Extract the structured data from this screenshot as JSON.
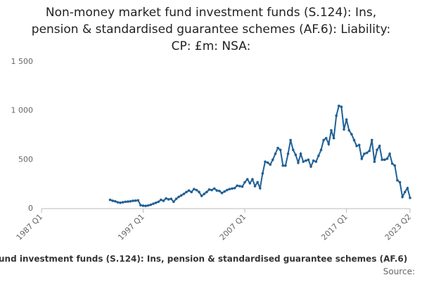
{
  "chart_data": {
    "type": "line",
    "title": [
      "Non-money market fund investment funds (S.124): Ins,",
      "pension & standardised guarantee schemes (AF.6): Liability:",
      "CP: £m: NSA:"
    ],
    "x_label": "und investment funds (S.124): Ins, pension & standardised guarantee schemes (AF.6)",
    "source": "Source:",
    "start": "1993 Q4",
    "xlim": [
      "1987 Q1",
      "2023 Q2"
    ],
    "xticks": [
      "1987 Q1",
      "1997 Q1",
      "2007 Q1",
      "2017 Q1",
      "2023 Q2"
    ],
    "ylim": [
      0,
      1500
    ],
    "yticks": [
      0,
      500,
      {
        "value": 1000,
        "label": "1 000"
      },
      {
        "value": 1500,
        "label": "1 500"
      }
    ],
    "grid": false,
    "series": [
      {
        "name": "Liability",
        "color": "#206095",
        "values": [
          90,
          80,
          75,
          65,
          60,
          65,
          70,
          72,
          75,
          80,
          82,
          85,
          35,
          30,
          28,
          32,
          40,
          50,
          60,
          70,
          90,
          80,
          105,
          95,
          100,
          70,
          100,
          120,
          135,
          150,
          170,
          185,
          170,
          200,
          190,
          170,
          130,
          150,
          170,
          195,
          190,
          205,
          185,
          180,
          160,
          175,
          190,
          200,
          205,
          210,
          235,
          230,
          225,
          270,
          300,
          260,
          300,
          230,
          270,
          210,
          360,
          480,
          470,
          450,
          500,
          560,
          620,
          600,
          440,
          440,
          560,
          700,
          600,
          550,
          470,
          560,
          480,
          490,
          500,
          430,
          490,
          480,
          540,
          600,
          700,
          720,
          660,
          800,
          720,
          950,
          1050,
          1040,
          810,
          910,
          800,
          760,
          700,
          640,
          650,
          510,
          560,
          570,
          590,
          700,
          480,
          600,
          640,
          500,
          500,
          510,
          560,
          460,
          440,
          290,
          270,
          120,
          170,
          210,
          110
        ]
      }
    ]
  }
}
